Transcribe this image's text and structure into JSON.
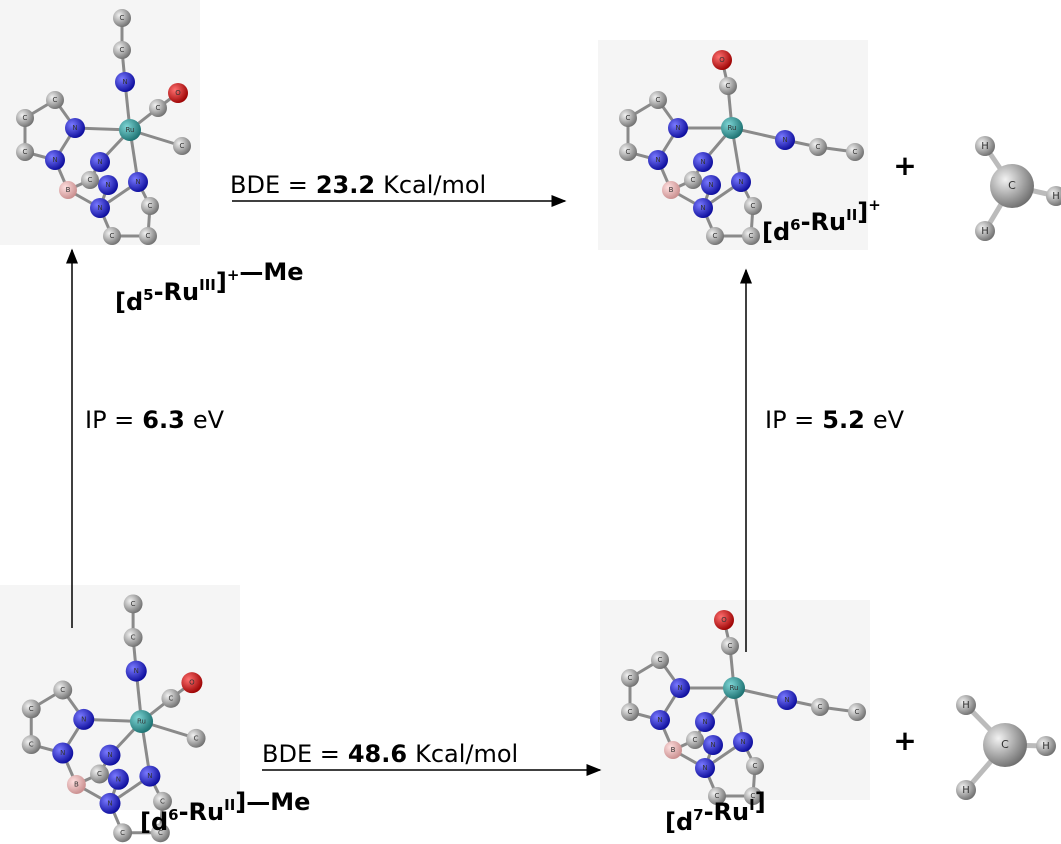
{
  "elements": {
    "carbon": "C",
    "nitrogen": "N",
    "oxygen": "O",
    "ruthenium": "Ru",
    "boron": "B",
    "hydrogen": "H"
  },
  "reactions": [
    {
      "label": "BDE =",
      "value": 23.2,
      "unit": "Kcal/mol"
    },
    {
      "label": "BDE =",
      "value": 48.6,
      "unit": "Kcal/mol"
    },
    {
      "label": "IP =",
      "value": 6.3,
      "unit": "eV"
    },
    {
      "label": "IP =",
      "value": 5.2,
      "unit": "eV"
    }
  ],
  "species": [
    {
      "parts": [
        {
          "t": "[d",
          "s": "5"
        },
        {
          "t": "-Ru",
          "s": "III"
        },
        {
          "t": "]",
          "s": "+"
        },
        {
          "t": "—Me"
        }
      ]
    },
    {
      "parts": [
        {
          "t": "[d",
          "s": "6"
        },
        {
          "t": "-Ru",
          "s": "II"
        },
        {
          "t": "]",
          "s": "+"
        }
      ]
    },
    {
      "parts": [
        {
          "t": "[d",
          "s": "6"
        },
        {
          "t": "-Ru",
          "s": "II"
        },
        {
          "t": "]—Me"
        }
      ]
    },
    {
      "parts": [
        {
          "t": "[d",
          "s": "7"
        },
        {
          "t": "-Ru",
          "s": "I"
        },
        {
          "t": "]"
        }
      ]
    }
  ],
  "plus": "+"
}
